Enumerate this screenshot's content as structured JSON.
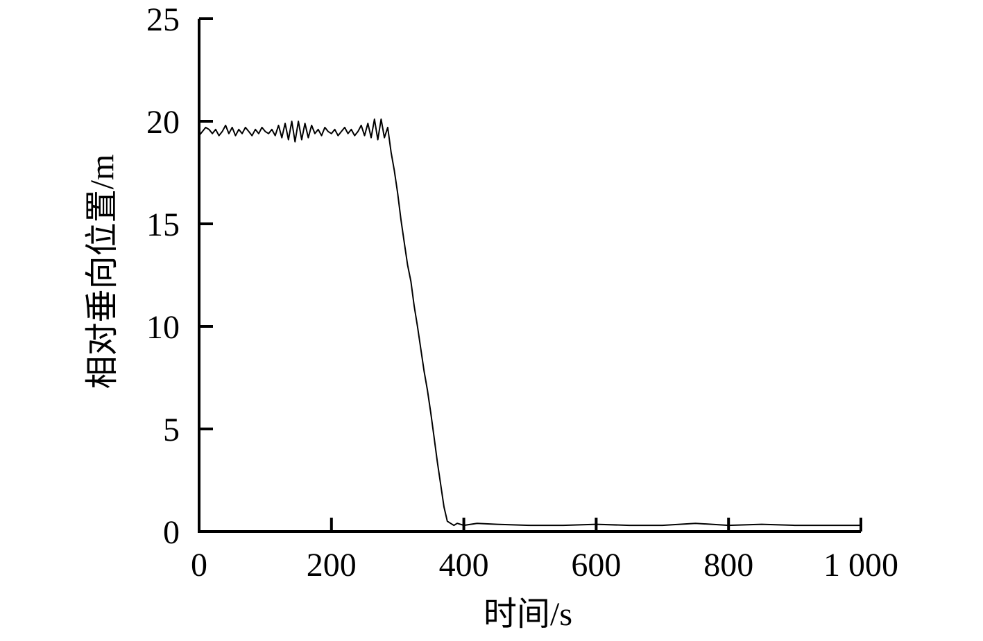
{
  "chart_data": {
    "type": "line",
    "title": "",
    "xlabel": "时间/s",
    "ylabel": "相对垂向位置/m",
    "xlim": [
      0,
      1000
    ],
    "ylim": [
      0,
      25
    ],
    "x_ticks": [
      0,
      200,
      400,
      600,
      800,
      1000
    ],
    "x_tick_labels": [
      "0",
      "200",
      "400",
      "600",
      "800",
      "1 000"
    ],
    "y_ticks": [
      0,
      5,
      10,
      15,
      20,
      25
    ],
    "y_tick_labels": [
      "0",
      "5",
      "10",
      "15",
      "20",
      "25"
    ],
    "grid": false,
    "legend": "none",
    "line_color": "#000000",
    "series": [
      {
        "x": [
          0,
          5,
          10,
          15,
          20,
          25,
          30,
          35,
          40,
          45,
          50,
          55,
          60,
          65,
          70,
          75,
          80,
          85,
          90,
          95,
          100,
          105,
          110,
          115,
          120,
          125,
          130,
          135,
          140,
          145,
          150,
          155,
          160,
          165,
          170,
          175,
          180,
          185,
          190,
          195,
          200,
          205,
          210,
          215,
          220,
          225,
          230,
          235,
          240,
          245,
          250,
          255,
          260,
          265,
          270,
          275,
          280,
          285,
          290,
          295,
          300,
          305,
          310,
          315,
          320,
          325,
          330,
          335,
          340,
          345,
          350,
          355,
          360,
          365,
          370,
          375,
          380,
          385,
          390,
          400,
          420,
          450,
          500,
          550,
          600,
          650,
          700,
          750,
          800,
          850,
          900,
          950,
          1000
        ],
        "y": [
          19.3,
          19.5,
          19.7,
          19.6,
          19.4,
          19.6,
          19.3,
          19.5,
          19.8,
          19.4,
          19.7,
          19.3,
          19.6,
          19.4,
          19.7,
          19.5,
          19.3,
          19.6,
          19.4,
          19.7,
          19.5,
          19.4,
          19.6,
          19.3,
          19.8,
          19.2,
          19.9,
          19.1,
          20.0,
          19.0,
          20.0,
          19.1,
          19.9,
          19.2,
          19.8,
          19.4,
          19.6,
          19.3,
          19.7,
          19.5,
          19.4,
          19.6,
          19.3,
          19.5,
          19.7,
          19.4,
          19.6,
          19.3,
          19.5,
          19.8,
          19.3,
          19.9,
          19.2,
          20.1,
          19.1,
          20.1,
          19.2,
          19.7,
          18.5,
          17.6,
          16.5,
          15.2,
          14.1,
          13.0,
          12.2,
          11.0,
          10.0,
          8.9,
          7.8,
          6.9,
          5.8,
          4.6,
          3.4,
          2.3,
          1.2,
          0.5,
          0.4,
          0.3,
          0.4,
          0.3,
          0.4,
          0.35,
          0.3,
          0.3,
          0.35,
          0.3,
          0.3,
          0.4,
          0.3,
          0.35,
          0.3,
          0.3,
          0.3
        ]
      }
    ]
  }
}
